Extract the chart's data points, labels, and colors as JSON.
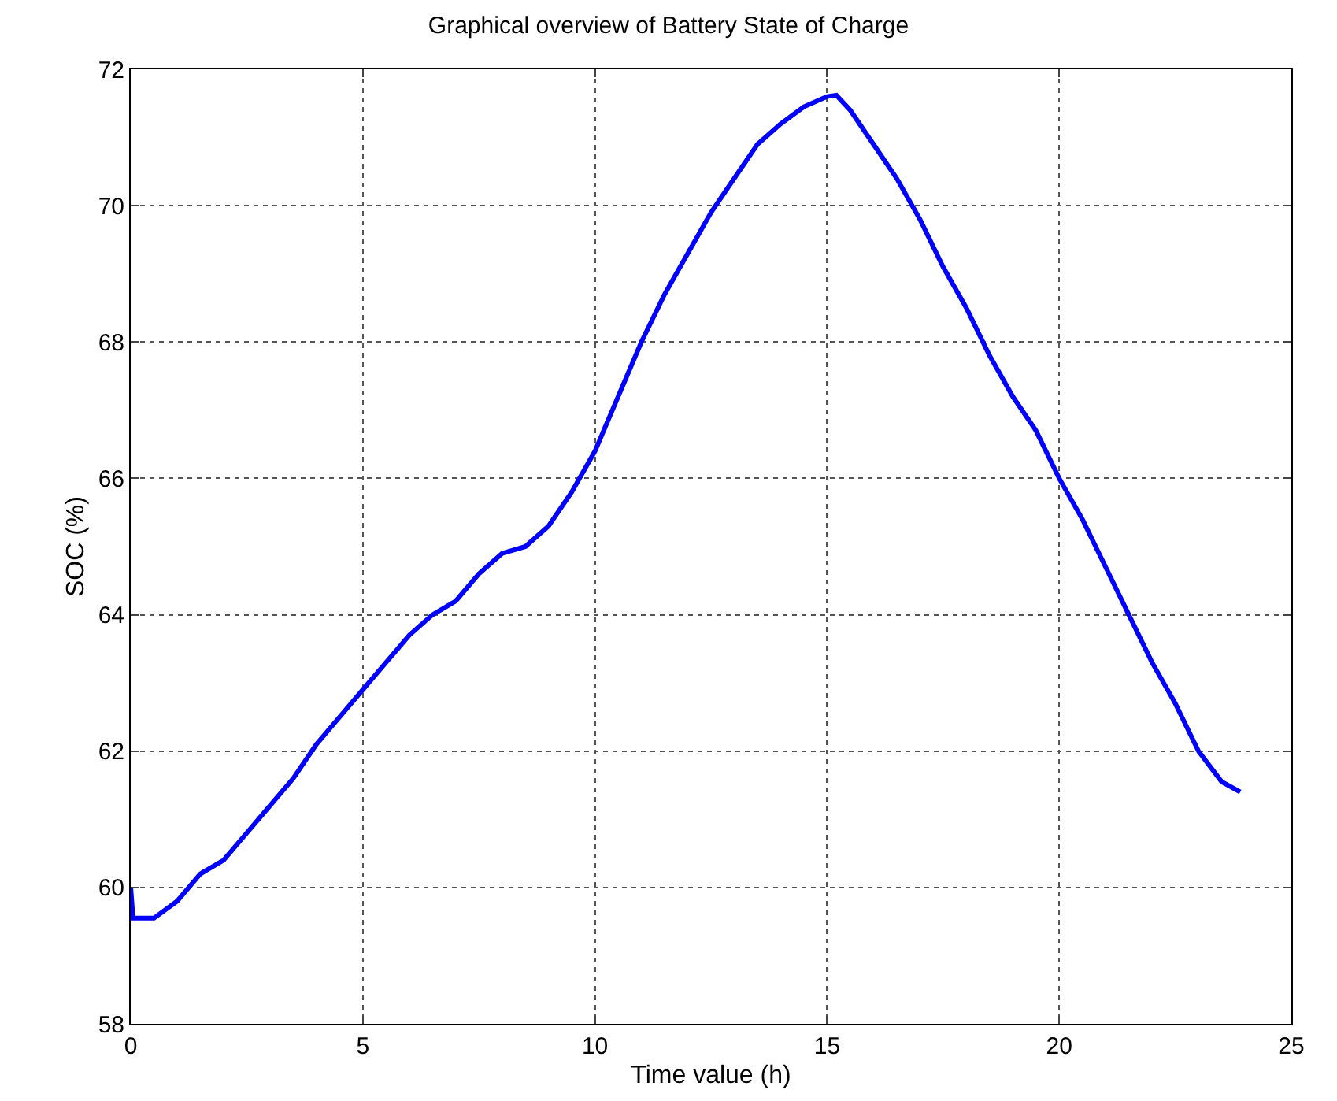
{
  "chart_data": {
    "type": "line",
    "title": "Graphical overview of Battery State of Charge",
    "xlabel": "Time value (h)",
    "ylabel": "SOC (%)",
    "x": [
      0,
      0.05,
      0.5,
      1,
      1.5,
      2,
      2.5,
      3,
      3.5,
      4,
      4.5,
      5,
      5.5,
      6,
      6.5,
      7,
      7.5,
      8,
      8.5,
      9,
      9.5,
      10,
      10.5,
      11,
      11.5,
      12,
      12.5,
      13,
      13.5,
      14,
      14.5,
      15,
      15.2,
      15.5,
      16,
      16.5,
      17,
      17.5,
      18,
      18.5,
      19,
      19.5,
      20,
      20.5,
      21,
      21.5,
      22,
      22.5,
      23,
      23.5,
      23.9
    ],
    "series": [
      {
        "color": "#0000ff",
        "values": [
          60.0,
          59.55,
          59.55,
          59.8,
          60.2,
          60.4,
          60.8,
          61.2,
          61.6,
          62.1,
          62.5,
          62.9,
          63.3,
          63.7,
          64.0,
          64.2,
          64.6,
          64.9,
          65.0,
          65.3,
          65.8,
          66.4,
          67.2,
          68.0,
          68.7,
          69.3,
          69.9,
          70.4,
          70.9,
          71.2,
          71.45,
          71.6,
          71.62,
          71.4,
          70.9,
          70.4,
          69.8,
          69.1,
          68.5,
          67.8,
          67.2,
          66.7,
          66.0,
          65.4,
          64.7,
          64.0,
          63.3,
          62.7,
          62.0,
          61.55,
          61.4
        ]
      }
    ],
    "xlim": [
      0,
      25
    ],
    "xticks": [
      0,
      5,
      10,
      15,
      20,
      25
    ],
    "ylim": [
      58,
      72
    ],
    "yticks": [
      58,
      60,
      62,
      64,
      66,
      68,
      70,
      72
    ],
    "grid": true,
    "marker": "none",
    "line_style": "solid"
  }
}
